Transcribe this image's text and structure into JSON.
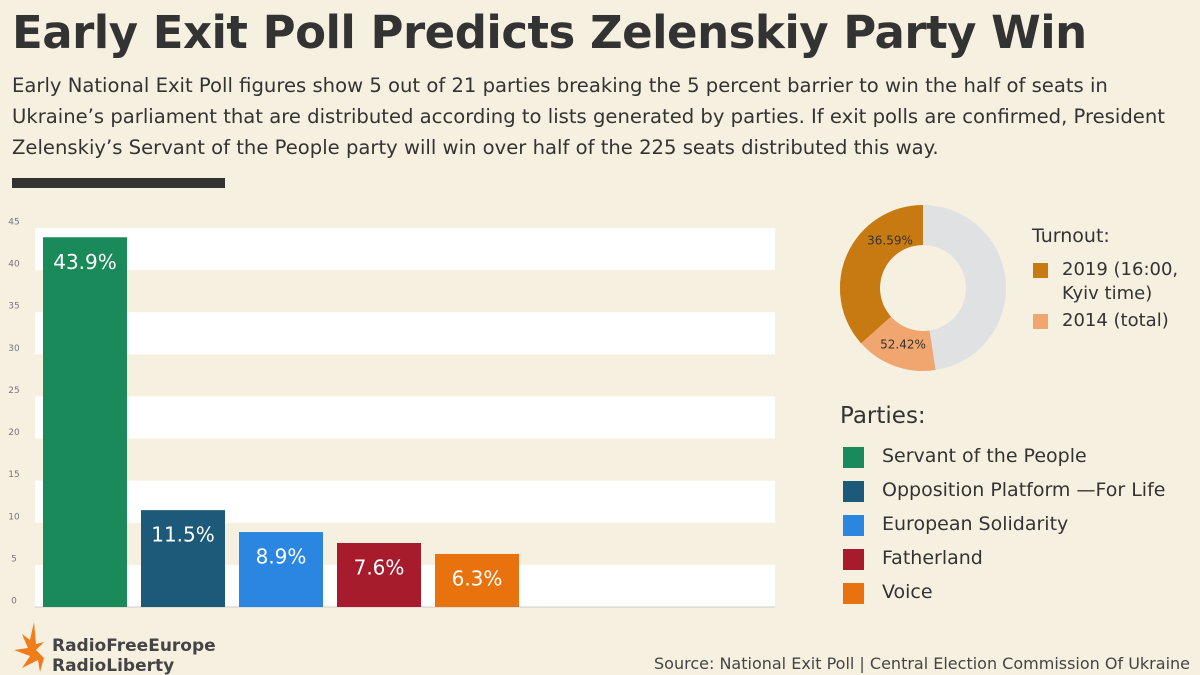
{
  "header": {
    "title": "Early Exit Poll Predicts Zelenskiy Party Win",
    "subtitle": "Early National Exit Poll figures show 5 out of 21 parties breaking the 5 percent barrier to win the half of seats in Ukraine’s parliament that are distributed according to lists generated by parties. If exit polls are confirmed, President Zelenskiy’s Servant of the People party will win over half of the 225 seats distributed this way."
  },
  "chart_data": [
    {
      "type": "bar",
      "legend_title": "Parties:",
      "categories": [
        "Servant of the People",
        "Opposition Platform —For Life",
        "European Solidarity",
        "Fatherland",
        "Voice"
      ],
      "values": [
        43.9,
        11.5,
        8.9,
        7.6,
        6.3
      ],
      "value_labels": [
        "43.9%",
        "11.5%",
        "8.9%",
        "7.6%",
        "6.3%"
      ],
      "colors": [
        "#1b8a5a",
        "#1d5a7a",
        "#2a86e0",
        "#a61c2c",
        "#e8730e"
      ],
      "ylim": [
        0,
        45
      ],
      "yticks": [
        0,
        5,
        10,
        15,
        20,
        25,
        30,
        35,
        40,
        45
      ],
      "grid": "bands"
    },
    {
      "type": "donut",
      "legend_title": "Turnout:",
      "categories": [
        "2019 (16:00, Kyiv time)",
        "2014 (total)"
      ],
      "values": [
        36.59,
        52.42
      ],
      "value_labels": [
        "36.59%",
        "52.42%"
      ],
      "colors": [
        "#c77a12",
        "#f0a66e"
      ]
    }
  ],
  "footer": {
    "source": "Source: National Exit Poll | Central Election Commission Of Ukraine",
    "logo": [
      "RadioFreeEurope",
      "RadioLiberty"
    ]
  }
}
